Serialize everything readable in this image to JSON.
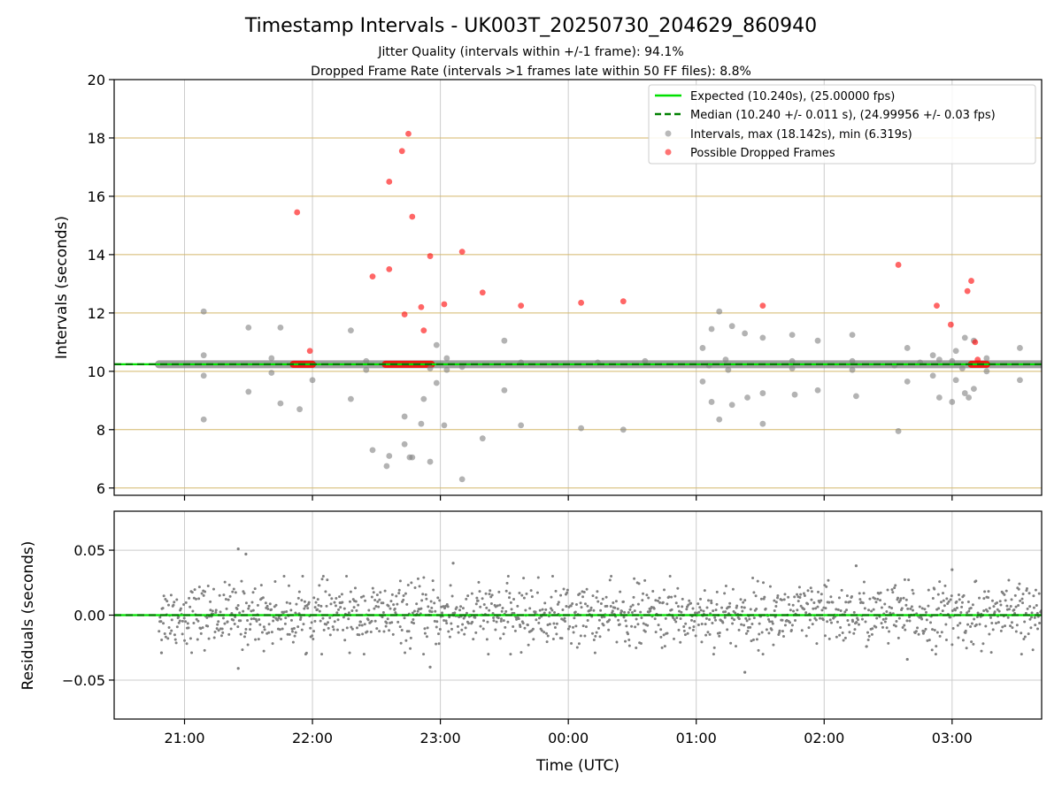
{
  "chart_data": [
    {
      "type": "scatter",
      "title": "Timestamp Intervals - UK003T_20250730_204629_860940",
      "subtitle_lines": [
        "Jitter Quality (intervals within +/-1 frame): 94.1%",
        "Dropped Frame Rate (intervals >1 frames late within 50 FF files): 8.8%"
      ],
      "ylabel": "Intervals (seconds)",
      "xlim_hours": [
        20.45,
        27.7
      ],
      "ylim": [
        5.75,
        20
      ],
      "yticks": [
        6,
        8,
        10,
        12,
        14,
        16,
        18,
        20
      ],
      "grid": true,
      "legend_position": "top-right",
      "legend": [
        "Expected (10.240s), (25.00000 fps)",
        "Median (10.240 +/- 0.011 s), (24.99956 +/- 0.03 fps)",
        "Intervals, max (18.142s), min (6.319s)",
        "Possible Dropped Frames"
      ],
      "expected_interval": 10.24,
      "median_interval": 10.24,
      "dense_band": {
        "x_start_hour": 20.8,
        "x_end_hour": 27.7,
        "y": 10.24
      },
      "series": [
        {
          "name": "Intervals, max (18.142s), min (6.319s)",
          "color": "#808080",
          "points": [
            [
              21.15,
              12.05
            ],
            [
              21.15,
              10.55
            ],
            [
              21.15,
              9.85
            ],
            [
              21.15,
              8.35
            ],
            [
              21.5,
              11.5
            ],
            [
              21.5,
              9.3
            ],
            [
              21.68,
              10.45
            ],
            [
              21.68,
              9.95
            ],
            [
              21.75,
              11.5
            ],
            [
              21.75,
              8.9
            ],
            [
              21.9,
              8.7
            ],
            [
              22.0,
              9.7
            ],
            [
              22.3,
              11.4
            ],
            [
              22.3,
              9.05
            ],
            [
              22.42,
              10.35
            ],
            [
              22.42,
              10.05
            ],
            [
              22.47,
              7.3
            ],
            [
              22.58,
              6.75
            ],
            [
              22.6,
              7.1
            ],
            [
              22.72,
              8.45
            ],
            [
              22.72,
              7.5
            ],
            [
              22.76,
              7.05
            ],
            [
              22.78,
              7.05
            ],
            [
              22.85,
              8.2
            ],
            [
              22.87,
              9.05
            ],
            [
              22.92,
              6.9
            ],
            [
              22.92,
              10.1
            ],
            [
              22.97,
              10.9
            ],
            [
              22.97,
              9.6
            ],
            [
              23.03,
              8.15
            ],
            [
              23.05,
              10.45
            ],
            [
              23.05,
              10.05
            ],
            [
              23.17,
              10.15
            ],
            [
              23.17,
              6.3
            ],
            [
              23.33,
              7.7
            ],
            [
              23.5,
              11.05
            ],
            [
              23.5,
              9.35
            ],
            [
              23.63,
              10.3
            ],
            [
              23.63,
              8.15
            ],
            [
              24.1,
              8.05
            ],
            [
              24.23,
              10.3
            ],
            [
              24.43,
              8.0
            ],
            [
              24.6,
              10.35
            ],
            [
              25.05,
              10.8
            ],
            [
              25.05,
              9.65
            ],
            [
              25.1,
              10.2
            ],
            [
              25.12,
              11.45
            ],
            [
              25.12,
              8.95
            ],
            [
              25.18,
              12.05
            ],
            [
              25.18,
              8.35
            ],
            [
              25.23,
              10.4
            ],
            [
              25.25,
              10.05
            ],
            [
              25.28,
              8.85
            ],
            [
              25.28,
              11.55
            ],
            [
              25.38,
              11.3
            ],
            [
              25.4,
              9.1
            ],
            [
              25.52,
              11.15
            ],
            [
              25.52,
              9.25
            ],
            [
              25.52,
              8.2
            ],
            [
              25.75,
              11.25
            ],
            [
              25.75,
              10.35
            ],
            [
              25.75,
              10.1
            ],
            [
              25.77,
              9.2
            ],
            [
              25.95,
              11.05
            ],
            [
              25.95,
              9.35
            ],
            [
              26.22,
              11.25
            ],
            [
              26.22,
              10.35
            ],
            [
              26.22,
              10.05
            ],
            [
              26.25,
              9.15
            ],
            [
              26.55,
              10.2
            ],
            [
              26.58,
              7.95
            ],
            [
              26.65,
              10.8
            ],
            [
              26.65,
              9.65
            ],
            [
              26.75,
              10.3
            ],
            [
              26.85,
              10.55
            ],
            [
              26.85,
              9.85
            ],
            [
              26.9,
              10.4
            ],
            [
              26.9,
              9.1
            ],
            [
              27.0,
              10.35
            ],
            [
              27.0,
              8.95
            ],
            [
              27.03,
              10.7
            ],
            [
              27.03,
              9.7
            ],
            [
              27.08,
              10.1
            ],
            [
              27.1,
              11.15
            ],
            [
              27.1,
              9.25
            ],
            [
              27.13,
              9.1
            ],
            [
              27.17,
              11.05
            ],
            [
              27.17,
              9.4
            ],
            [
              27.27,
              10.45
            ],
            [
              27.27,
              10.0
            ],
            [
              27.53,
              10.8
            ],
            [
              27.53,
              9.7
            ]
          ]
        },
        {
          "name": "Possible Dropped Frames",
          "color": "#ff0000",
          "points": [
            [
              21.88,
              15.45
            ],
            [
              21.98,
              10.7
            ],
            [
              22.47,
              13.25
            ],
            [
              22.6,
              16.5
            ],
            [
              22.6,
              13.5
            ],
            [
              22.7,
              17.55
            ],
            [
              22.72,
              11.95
            ],
            [
              22.75,
              18.142
            ],
            [
              22.78,
              15.3
            ],
            [
              22.85,
              12.2
            ],
            [
              22.87,
              11.4
            ],
            [
              22.92,
              13.95
            ],
            [
              23.03,
              12.3
            ],
            [
              23.17,
              14.1
            ],
            [
              23.33,
              12.7
            ],
            [
              23.63,
              12.25
            ],
            [
              24.1,
              12.35
            ],
            [
              24.43,
              12.4
            ],
            [
              25.52,
              12.25
            ],
            [
              26.58,
              13.65
            ],
            [
              26.88,
              12.25
            ],
            [
              26.99,
              11.6
            ],
            [
              27.12,
              12.75
            ],
            [
              27.15,
              13.1
            ],
            [
              27.18,
              11.0
            ],
            [
              27.2,
              10.4
            ]
          ],
          "clusters": [
            [
              21.85,
              22.0
            ],
            [
              22.57,
              22.93
            ],
            [
              27.15,
              27.27
            ]
          ]
        }
      ]
    },
    {
      "type": "scatter",
      "ylabel": "Residuals (seconds)",
      "xlabel": "Time (UTC)",
      "xlim_hours": [
        20.45,
        27.7
      ],
      "ylim": [
        -0.08,
        0.08
      ],
      "yticks": [
        0.05,
        0.0,
        -0.05
      ],
      "ytick_labels": [
        "0.05",
        "0.00",
        "−0.05"
      ],
      "xticks_hours": [
        21,
        22,
        23,
        24,
        25,
        26,
        27
      ],
      "xtick_labels": [
        "21:00",
        "22:00",
        "23:00",
        "00:00",
        "01:00",
        "02:00",
        "03:00"
      ],
      "grid": true,
      "series": [
        {
          "name": "Residuals",
          "color": "#808080",
          "x_range_hours": [
            20.8,
            27.7
          ],
          "count": 1400,
          "spread_sd": 0.012,
          "outliers": [
            [
              21.42,
              0.051
            ],
            [
              21.48,
              0.047
            ],
            [
              21.42,
              -0.041
            ],
            [
              22.92,
              -0.04
            ],
            [
              25.38,
              -0.044
            ],
            [
              26.25,
              0.038
            ],
            [
              23.1,
              0.04
            ],
            [
              20.82,
              -0.029
            ],
            [
              26.65,
              -0.034
            ],
            [
              27.0,
              0.035
            ]
          ]
        }
      ]
    }
  ],
  "colors": {
    "expected": "#00e000",
    "median": "#008000",
    "intervals": "#808080",
    "dropped": "#ff0000",
    "hgrid_top": "#d4b76a",
    "grid": "#cccccc"
  }
}
